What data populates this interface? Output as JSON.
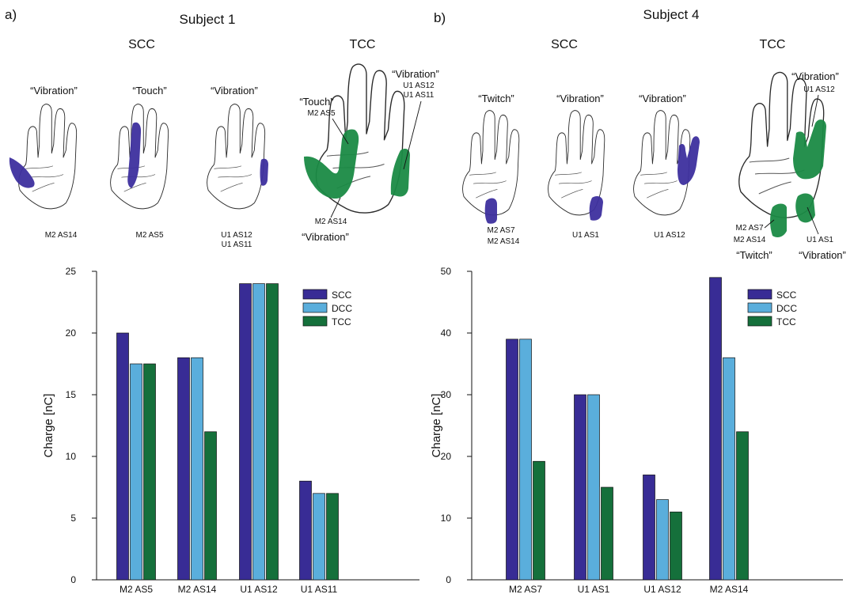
{
  "colors": {
    "SCC": "#382c95",
    "DCC": "#5aaedc",
    "TCC": "#15703b"
  },
  "panels": [
    {
      "letter": "a)",
      "subject": "Subject 1",
      "scc_header": "SCC",
      "tcc_header": "TCC",
      "scc_hands": [
        {
          "quote": "“Vibration”",
          "sites": [
            "M2 AS14"
          ]
        },
        {
          "quote": "“Touch”",
          "sites": [
            "M2 AS5"
          ]
        },
        {
          "quote": "“Vibration”",
          "sites": [
            "U1 AS12",
            "U1 AS11"
          ]
        }
      ],
      "tcc_hand": {
        "labels": [
          {
            "quote": "“Touch”",
            "sites": [
              "M2 AS5"
            ]
          },
          {
            "quote": "“Vibration”",
            "sites": [
              "U1 AS12",
              "U1 AS11"
            ]
          },
          {
            "quote": "“Vibration”",
            "sites": [
              "M2 AS14"
            ]
          }
        ]
      }
    },
    {
      "letter": "b)",
      "subject": "Subject 4",
      "scc_header": "SCC",
      "tcc_header": "TCC",
      "scc_hands": [
        {
          "quote": "“Twitch”",
          "sites": [
            "M2 AS7",
            "M2 AS14"
          ]
        },
        {
          "quote": "“Vibration”",
          "sites": [
            "U1 AS1"
          ]
        },
        {
          "quote": "“Vibration”",
          "sites": [
            "U1 AS12"
          ]
        }
      ],
      "tcc_hand": {
        "labels": [
          {
            "quote": "“Vibration”",
            "sites": [
              "U1 AS12"
            ]
          },
          {
            "quote": "“Twitch”",
            "sites": [
              "M2 AS7",
              "M2 AS14"
            ]
          },
          {
            "quote": "“Vibration”",
            "sites": [
              "U1 AS1"
            ]
          }
        ]
      }
    }
  ],
  "chart_data": [
    {
      "type": "bar",
      "title": "Subject 1",
      "xlabel": "",
      "ylabel": "Charge [nC]",
      "ylim": [
        0,
        25
      ],
      "yticks": [
        0,
        5,
        10,
        15,
        20,
        25
      ],
      "categories": [
        "M2 AS5",
        "M2 AS14",
        "U1 AS12",
        "U1 AS11"
      ],
      "series": [
        {
          "name": "SCC",
          "values": [
            20,
            18,
            24,
            8
          ]
        },
        {
          "name": "DCC",
          "values": [
            17.5,
            18,
            24,
            7
          ]
        },
        {
          "name": "TCC",
          "values": [
            17.5,
            12,
            24,
            7
          ]
        }
      ],
      "grid": false,
      "legend_position": "top-right"
    },
    {
      "type": "bar",
      "title": "Subject 4",
      "xlabel": "",
      "ylabel": "Charge [nC]",
      "ylim": [
        0,
        50
      ],
      "yticks": [
        0,
        10,
        20,
        30,
        40,
        50
      ],
      "categories": [
        "M2 AS7",
        "U1 AS1",
        "U1 AS12",
        "M2 AS14"
      ],
      "series": [
        {
          "name": "SCC",
          "values": [
            39,
            30,
            17,
            49
          ]
        },
        {
          "name": "DCC",
          "values": [
            39,
            30,
            13,
            36
          ]
        },
        {
          "name": "TCC",
          "values": [
            19.2,
            15,
            11,
            24
          ]
        }
      ],
      "grid": false,
      "legend_position": "top-right"
    }
  ]
}
